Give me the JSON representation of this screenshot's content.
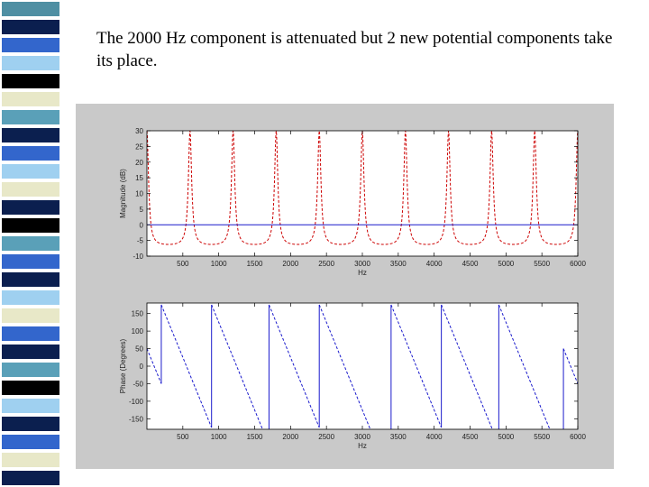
{
  "slide": {
    "caption": "The 2000 Hz component is attenuated but 2 new potential components take its place.",
    "strip_colors": [
      "#4f8fa3",
      "#0b1f4f",
      "#3366cc",
      "#9fd0f0",
      "#000000",
      "#e8e8c8",
      "#5aa0b8",
      "#0b1f4f",
      "#3366cc",
      "#9fd0f0",
      "#e8e8c8",
      "#0b1f4f",
      "#000000",
      "#5aa0b8",
      "#3366cc",
      "#0b1f4f",
      "#9fd0f0",
      "#e8e8c8",
      "#3366cc",
      "#0b1f4f",
      "#5aa0b8",
      "#000000",
      "#9fd0f0",
      "#0b1f4f",
      "#3366cc",
      "#e8e8c8",
      "#0b1f4f"
    ]
  },
  "colors": {
    "magnitude_curve": "#cc0000",
    "zero_line": "#1a1acc",
    "phase_curve": "#1a1acc",
    "figure_bg": "#c9c9c9",
    "axes_bg": "#ffffff"
  },
  "chart_data": [
    {
      "type": "line",
      "title": "",
      "xlabel": "Hz",
      "ylabel": "Magnitude (dB)",
      "xlim": [
        0,
        6000
      ],
      "ylim": [
        -10,
        30
      ],
      "xticks": [
        500,
        1000,
        1500,
        2000,
        2500,
        3000,
        3500,
        4000,
        4500,
        5000,
        5500,
        6000
      ],
      "xtick_labels": [
        "500",
        "1000",
        "1500",
        "2000",
        "2500",
        "3000",
        "3500",
        "4000",
        "4500",
        "5000",
        "5500",
        "6000"
      ],
      "yticks": [
        -10,
        -5,
        0,
        5,
        10,
        15,
        20,
        25,
        30
      ],
      "ytick_labels": [
        "-10",
        "-5",
        "0",
        "5",
        "10",
        "15",
        "20",
        "25",
        "30"
      ],
      "grid": false,
      "series": [
        {
          "style": "dashed",
          "color": "red",
          "period_hz": 600,
          "peak_frequencies": [
            0,
            600,
            1200,
            1800,
            2400,
            3000,
            3600,
            4200,
            4800,
            5400,
            6000
          ],
          "min_value": -7,
          "peak_value": 30
        },
        {
          "style": "solid",
          "color": "blue",
          "x": [
            0,
            6000
          ],
          "y": [
            0,
            0
          ]
        }
      ]
    },
    {
      "type": "line",
      "title": "",
      "xlabel": "Hz",
      "ylabel": "Phase (Degrees)",
      "xlim": [
        0,
        6000
      ],
      "ylim": [
        -180,
        180
      ],
      "xticks": [
        500,
        1000,
        1500,
        2000,
        2500,
        3000,
        3500,
        4000,
        4500,
        5000,
        5500,
        6000
      ],
      "xtick_labels": [
        "500",
        "1000",
        "1500",
        "2000",
        "2500",
        "3000",
        "3500",
        "4000",
        "4500",
        "5000",
        "5500",
        "6000"
      ],
      "yticks": [
        -150,
        -100,
        -50,
        0,
        50,
        100,
        150
      ],
      "ytick_labels": [
        "-150",
        "-100",
        "-50",
        "0",
        "50",
        "100",
        "150"
      ],
      "grid": false,
      "series": [
        {
          "style": "dashed",
          "color": "blue",
          "description_values": {
            "wrap_frequencies": [
              200,
              900,
              1700,
              2400,
              3400,
              4100,
              4900,
              5800
            ],
            "slope_deg_per_hz": -0.5
          }
        }
      ]
    }
  ]
}
